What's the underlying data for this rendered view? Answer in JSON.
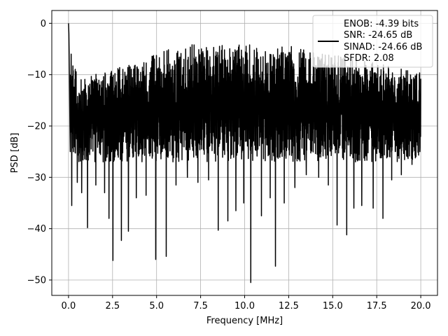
{
  "chart_data": {
    "type": "line",
    "xlabel": "Frequency [MHz]",
    "ylabel": "PSD [dB]",
    "xlim": [
      -0.95,
      20.95
    ],
    "ylim": [
      -53,
      2.5
    ],
    "x_ticks": [
      0.0,
      2.5,
      5.0,
      7.5,
      10.0,
      12.5,
      15.0,
      17.5,
      20.0
    ],
    "x_tick_labels": [
      "0.0",
      "2.5",
      "5.0",
      "7.5",
      "10.0",
      "12.5",
      "15.0",
      "17.5",
      "20.0"
    ],
    "y_ticks": [
      0,
      -10,
      -20,
      -30,
      -40,
      -50
    ],
    "y_tick_labels": [
      "0",
      "−10",
      "−20",
      "−30",
      "−40",
      "−50"
    ],
    "grid": true,
    "legend_placement": "upper right",
    "line_color": "#000000",
    "series": [
      {
        "x": [
          0.0,
          0.02,
          0.05,
          0.08,
          0.12,
          0.5,
          1.0,
          1.5,
          2.0,
          2.5,
          3.0,
          3.5,
          4.0,
          4.5,
          5.0,
          5.5,
          6.0,
          6.5,
          7.0,
          7.5,
          8.0,
          8.5,
          9.0,
          9.5,
          10.0,
          10.5,
          11.0,
          11.5,
          12.0,
          12.5,
          13.0,
          13.5,
          14.0,
          14.5,
          15.0,
          15.5,
          16.0,
          16.5,
          17.0,
          17.5,
          18.0,
          18.5,
          19.0,
          19.5,
          20.0
        ],
        "y": [
          0.0,
          -2.0,
          -10.0,
          -20.0,
          -17.0,
          -17.5,
          -18.0,
          -17.5,
          -18.0,
          -17.0,
          -17.5,
          -17.0,
          -16.5,
          -17.0,
          -16.5,
          -17.0,
          -16.0,
          -16.5,
          -16.5,
          -16.0,
          -16.5,
          -16.0,
          -16.5,
          -16.0,
          -16.5,
          -16.0,
          -16.0,
          -15.5,
          -16.0,
          -16.0,
          -16.5,
          -16.0,
          -16.0,
          -16.5,
          -16.5,
          -16.5,
          -16.0,
          -16.5,
          -17.0,
          -16.5,
          -17.0,
          -17.0,
          -17.0,
          -17.0,
          -16.5
        ]
      }
    ],
    "upper_envelope": {
      "x": [
        0.0,
        0.5,
        1.0,
        2.0,
        3.0,
        4.0,
        5.0,
        6.0,
        7.0,
        8.0,
        9.0,
        10.0,
        11.0,
        12.0,
        13.0,
        14.0,
        15.0,
        16.0,
        17.0,
        18.0,
        19.0,
        20.0
      ],
      "y": [
        0.0,
        -10.0,
        -10.0,
        -9.5,
        -8.5,
        -7.5,
        -6.0,
        -4.5,
        -4.0,
        -4.5,
        -4.0,
        -4.0,
        -4.5,
        -4.5,
        -4.5,
        -5.5,
        -6.0,
        -6.5,
        -7.5,
        -8.0,
        -9.0,
        -9.5
      ]
    },
    "lower_envelope": {
      "x": [
        0.0,
        0.5,
        1.0,
        2.0,
        3.0,
        4.0,
        5.0,
        6.0,
        7.0,
        8.0,
        9.0,
        10.0,
        11.0,
        12.0,
        13.0,
        14.0,
        15.0,
        16.0,
        17.0,
        18.0,
        19.0,
        20.0
      ],
      "y": [
        -25.0,
        -27.0,
        -27.0,
        -27.0,
        -27.0,
        -27.0,
        -27.0,
        -27.0,
        -27.0,
        -27.0,
        -27.0,
        -27.0,
        -27.0,
        -27.0,
        -27.0,
        -27.0,
        -27.0,
        -27.0,
        -27.0,
        -27.0,
        -27.0,
        -27.0
      ]
    },
    "deep_dips": [
      {
        "x": 0.05,
        "y": -25.0
      },
      {
        "x": 0.18,
        "y": -35.5
      },
      {
        "x": 0.5,
        "y": -31.0
      },
      {
        "x": 0.75,
        "y": -33.0
      },
      {
        "x": 1.08,
        "y": -39.8
      },
      {
        "x": 1.55,
        "y": -31.5
      },
      {
        "x": 2.05,
        "y": -33.0
      },
      {
        "x": 2.3,
        "y": -38.0
      },
      {
        "x": 2.52,
        "y": -46.2
      },
      {
        "x": 3.0,
        "y": -42.3
      },
      {
        "x": 3.4,
        "y": -40.5
      },
      {
        "x": 3.85,
        "y": -34.0
      },
      {
        "x": 4.4,
        "y": -33.5
      },
      {
        "x": 4.95,
        "y": -46.0
      },
      {
        "x": 5.55,
        "y": -45.4
      },
      {
        "x": 6.1,
        "y": -31.5
      },
      {
        "x": 6.75,
        "y": -30.0
      },
      {
        "x": 7.35,
        "y": -31.0
      },
      {
        "x": 7.95,
        "y": -30.5
      },
      {
        "x": 8.5,
        "y": -40.3
      },
      {
        "x": 9.05,
        "y": -38.5
      },
      {
        "x": 9.5,
        "y": -36.5
      },
      {
        "x": 9.95,
        "y": -35.0
      },
      {
        "x": 10.35,
        "y": -50.5
      },
      {
        "x": 10.95,
        "y": -37.5
      },
      {
        "x": 11.45,
        "y": -34.0
      },
      {
        "x": 11.75,
        "y": -47.3
      },
      {
        "x": 12.25,
        "y": -35.0
      },
      {
        "x": 12.85,
        "y": -32.0
      },
      {
        "x": 13.5,
        "y": -29.5
      },
      {
        "x": 14.2,
        "y": -30.0
      },
      {
        "x": 14.75,
        "y": -31.5
      },
      {
        "x": 15.25,
        "y": -39.3
      },
      {
        "x": 15.8,
        "y": -41.2
      },
      {
        "x": 16.2,
        "y": -36.0
      },
      {
        "x": 16.65,
        "y": -35.5
      },
      {
        "x": 17.3,
        "y": -36.0
      },
      {
        "x": 17.85,
        "y": -38.0
      },
      {
        "x": 18.35,
        "y": -30.5
      },
      {
        "x": 18.9,
        "y": -29.5
      },
      {
        "x": 19.5,
        "y": -27.5
      },
      {
        "x": 19.95,
        "y": -25.0
      }
    ]
  },
  "legend": {
    "line1": "ENOB: -4.39 bits",
    "line2": "SNR: -24.65 dB",
    "line3": "SINAD: -24.66 dB",
    "line4": "SFDR: 2.08"
  }
}
